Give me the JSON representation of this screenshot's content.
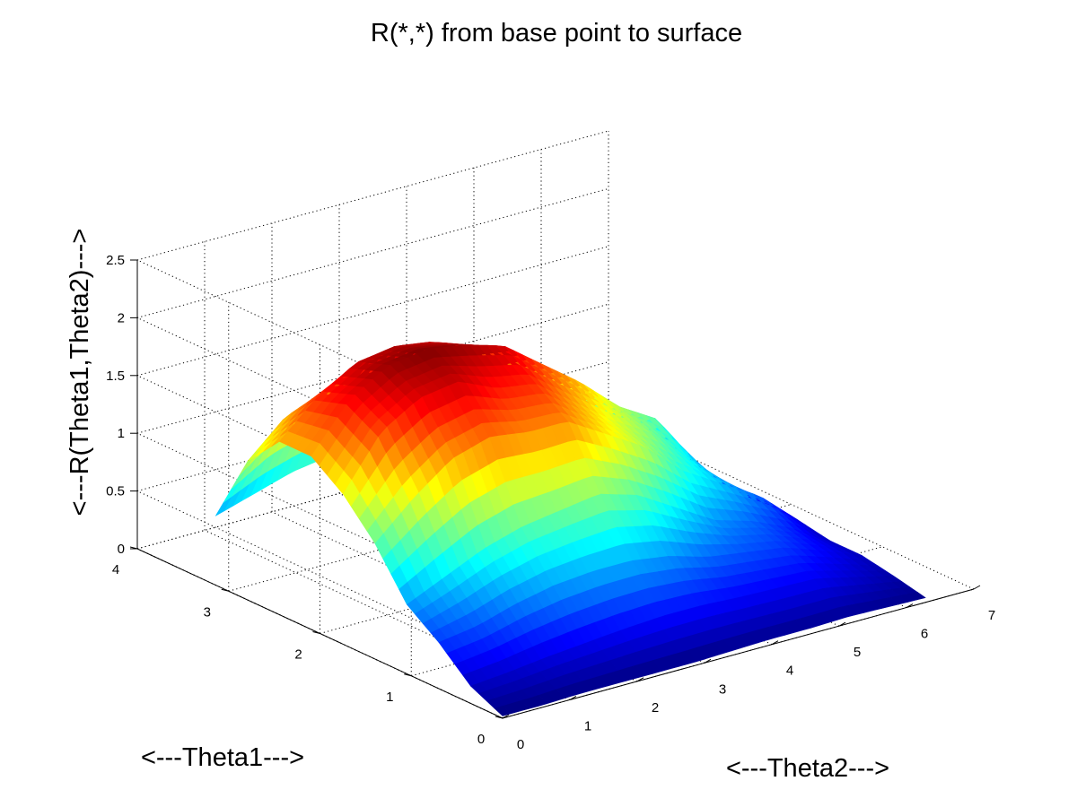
{
  "chart_data": {
    "type": "surface",
    "title": "R(*,*) from base point to surface",
    "xlabel": "<---Theta2--->",
    "ylabel": "<---Theta1--->",
    "zlabel": "<---R(Theta1,Theta2)--->",
    "xlim": [
      0,
      7
    ],
    "ylim": [
      0,
      4
    ],
    "zlim": [
      0,
      2.5
    ],
    "x_ticks": [
      "0",
      "1",
      "2",
      "3",
      "4",
      "5",
      "6",
      "7"
    ],
    "y_ticks": [
      "0",
      "1",
      "2",
      "3",
      "4"
    ],
    "z_ticks": [
      "0",
      "0.5",
      "1",
      "1.5",
      "2",
      "2.5"
    ],
    "grid": true,
    "colormap": "jet",
    "x_domain": [
      0,
      6.2832
    ],
    "y_domain": [
      0,
      3.1416
    ],
    "theta1": [
      0,
      0.3491,
      0.6981,
      1.0472,
      1.3963,
      1.7453,
      2.0944,
      2.4435,
      2.7925,
      3.1416
    ],
    "theta2": [
      0,
      0.5712,
      1.1424,
      1.7136,
      2.2848,
      2.856,
      3.4272,
      3.9984,
      4.5696,
      5.1408,
      5.712,
      6.2832
    ],
    "R": [
      [
        0.02,
        0.02,
        0.03,
        0.03,
        0.03,
        0.03,
        0.04,
        0.05,
        0.05,
        0.06,
        0.05,
        0.04
      ],
      [
        0.15,
        0.18,
        0.22,
        0.25,
        0.28,
        0.3,
        0.3,
        0.28,
        0.27,
        0.26,
        0.18,
        0.1
      ],
      [
        0.4,
        0.45,
        0.55,
        0.62,
        0.65,
        0.65,
        0.6,
        0.5,
        0.45,
        0.4,
        0.28,
        0.15
      ],
      [
        0.6,
        0.75,
        0.9,
        1.0,
        1.05,
        1.1,
        1.0,
        0.8,
        0.6,
        0.5,
        0.35,
        0.15
      ],
      [
        1.0,
        1.3,
        1.55,
        1.65,
        1.6,
        1.6,
        1.4,
        1.2,
        0.9,
        0.7,
        0.5,
        0.2
      ],
      [
        1.3,
        1.75,
        1.95,
        2.0,
        1.85,
        1.8,
        1.55,
        1.3,
        1.1,
        0.8,
        0.45,
        0.2
      ],
      [
        1.5,
        1.9,
        2.1,
        2.15,
        2.1,
        2.0,
        1.75,
        1.5,
        1.2,
        1.0,
        0.5,
        0.2
      ],
      [
        1.5,
        1.8,
        2.0,
        2.05,
        2.0,
        1.85,
        1.55,
        1.3,
        1.0,
        0.8,
        0.45,
        0.2
      ],
      [
        1.2,
        1.5,
        1.6,
        1.5,
        1.4,
        1.3,
        1.1,
        1.0,
        0.7,
        0.6,
        0.3,
        0.1
      ],
      [
        0.6,
        0.7,
        0.8,
        0.85,
        0.8,
        0.7,
        0.6,
        0.5,
        0.4,
        0.3,
        0.15,
        0.05
      ]
    ]
  }
}
